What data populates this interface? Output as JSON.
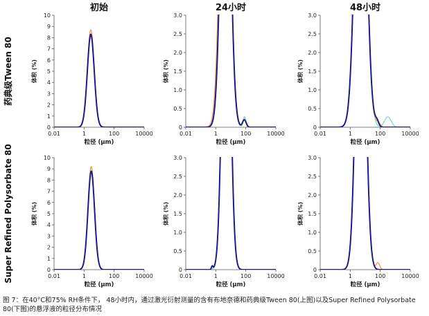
{
  "columns": [
    "初始",
    "24小时",
    "48小时"
  ],
  "rows": [
    "药典级Tween 80",
    "Super Refined Polysorbate 80"
  ],
  "caption": "图 7：在40°C和75% RH条件下， 48小时内，通过激光衍射测量的含有布地奈德和药典级Tween 80(上图)以及Super Refined Polysorbate 80(下图)的悬浮液的粒径分布情况",
  "colors": {
    "main": "#1f1a8a",
    "alt": "#f0a050",
    "alt2": "#7ee0c8"
  },
  "chart_data": [
    {
      "type": "line",
      "row": 0,
      "col": 0,
      "xlabel": "粒径 (μm)",
      "ylabel": "体积 (%)",
      "xscale": "log",
      "xlim": [
        0.01,
        10000
      ],
      "ylim": [
        0,
        10
      ],
      "xticks": [
        "0.01",
        "1",
        "100",
        "10000"
      ],
      "yticks": [
        "0",
        "1",
        "2",
        "3",
        "4",
        "5",
        "6",
        "7",
        "8",
        "9",
        "10"
      ],
      "series": [
        {
          "color": "alt",
          "peaks": [
            {
              "center": 2.8,
              "sigma": 0.23,
              "height": 8.7
            }
          ],
          "xmin": 0.01,
          "xmax": 10000
        },
        {
          "color": "main",
          "peaks": [
            {
              "center": 2.8,
              "sigma": 0.23,
              "height": 8.3
            }
          ],
          "xmin": 0.01,
          "xmax": 10000
        }
      ]
    },
    {
      "type": "line",
      "row": 0,
      "col": 1,
      "xlabel": "粒径 (μm)",
      "ylabel": "体积 (%)",
      "xscale": "log",
      "xlim": [
        0.01,
        10000
      ],
      "ylim": [
        0,
        3.0
      ],
      "xticks": [
        "0.01",
        "1",
        "100",
        "10000"
      ],
      "yticks": [
        "0",
        "0.5",
        "1.0",
        "1.5",
        "2.0",
        "2.5",
        "3.0"
      ],
      "series": [
        {
          "color": "alt2",
          "peaks": [
            {
              "center": 4.5,
              "sigma": 0.3,
              "height": 10
            },
            {
              "center": 82,
              "sigma": 0.09,
              "height": 0.28
            }
          ],
          "xmin": 0.01,
          "xmax": 10000
        },
        {
          "color": "alt",
          "peaks": [
            {
              "center": 4.2,
              "sigma": 0.32,
              "height": 10
            },
            {
              "center": 78,
              "sigma": 0.1,
              "height": 0.22
            }
          ],
          "xmin": 0.01,
          "xmax": 10000
        },
        {
          "color": "main",
          "peaks": [
            {
              "center": 4.5,
              "sigma": 0.3,
              "height": 10
            },
            {
              "center": 80,
              "sigma": 0.12,
              "height": 0.2
            }
          ],
          "xmin": 0.01,
          "xmax": 10000
        }
      ]
    },
    {
      "type": "line",
      "row": 0,
      "col": 2,
      "xlabel": "粒径 (μm)",
      "ylabel": "体积 (%)",
      "xscale": "log",
      "xlim": [
        0.01,
        10000
      ],
      "ylim": [
        0,
        3.0
      ],
      "xticks": [
        "0.01",
        "1",
        "100",
        "10000"
      ],
      "yticks": [
        "0",
        "0.5",
        "1.0",
        "1.5",
        "2.0",
        "2.5",
        "3.0"
      ],
      "series": [
        {
          "color": "alt2",
          "peaks": [
            {
              "center": 5,
              "sigma": 0.35,
              "height": 10
            },
            {
              "center": 320,
              "sigma": 0.22,
              "height": 0.28
            }
          ],
          "xmin": 0.01,
          "xmax": 10000
        },
        {
          "color": "alt",
          "peaks": [
            {
              "center": 5,
              "sigma": 0.35,
              "height": 10
            },
            {
              "center": 75,
              "sigma": 0.12,
              "height": 0.12
            }
          ],
          "xmin": 0.01,
          "xmax": 10000
        },
        {
          "color": "main",
          "peaks": [
            {
              "center": 5,
              "sigma": 0.35,
              "height": 10
            },
            {
              "center": 60,
              "sigma": 0.12,
              "height": 0.15
            }
          ],
          "xmin": 0.01,
          "xmax": 10000
        }
      ]
    },
    {
      "type": "line",
      "row": 1,
      "col": 0,
      "xlabel": "粒径 (μm)",
      "ylabel": "体积 (%)",
      "xscale": "log",
      "xlim": [
        0.01,
        10000
      ],
      "ylim": [
        0,
        10
      ],
      "xticks": [
        "0.01",
        "1",
        "100",
        "10000"
      ],
      "yticks": [
        "0",
        "1",
        "2",
        "3",
        "4",
        "5",
        "6",
        "7",
        "8",
        "9",
        "10"
      ],
      "series": [
        {
          "color": "alt",
          "peaks": [
            {
              "center": 3.0,
              "sigma": 0.22,
              "height": 9.2
            }
          ],
          "xmin": 0.01,
          "xmax": 10000
        },
        {
          "color": "main",
          "peaks": [
            {
              "center": 3.0,
              "sigma": 0.22,
              "height": 8.8
            }
          ],
          "xmin": 0.01,
          "xmax": 10000
        }
      ]
    },
    {
      "type": "line",
      "row": 1,
      "col": 1,
      "xlabel": "粒径 (μm)",
      "ylabel": "体积 (%)",
      "xscale": "log",
      "xlim": [
        0.01,
        10000
      ],
      "ylim": [
        0,
        3.0
      ],
      "xticks": [
        "0.01",
        "1",
        "100",
        "10000"
      ],
      "yticks": [
        "0",
        "0.5",
        "1.0",
        "1.5",
        "2.0",
        "2.5",
        "3.0"
      ],
      "series": [
        {
          "color": "alt2",
          "peaks": [
            {
              "center": 5,
              "sigma": 0.26,
              "height": 10
            }
          ],
          "xmin": 0.01,
          "xmax": 10000
        },
        {
          "color": "main",
          "peaks": [
            {
              "center": 5,
              "sigma": 0.26,
              "height": 10
            },
            {
              "center": 0.58,
              "sigma": 0.05,
              "height": 0.09
            }
          ],
          "xmin": 0.01,
          "xmax": 10000
        }
      ]
    },
    {
      "type": "line",
      "row": 1,
      "col": 2,
      "xlabel": "粒径 (μm)",
      "ylabel": "体积 (%)",
      "xscale": "log",
      "xlim": [
        0.01,
        10000
      ],
      "ylim": [
        0,
        3.0
      ],
      "xticks": [
        "0.01",
        "1",
        "100",
        "10000"
      ],
      "yticks": [
        "0",
        "0.5",
        "1.0",
        "1.5",
        "2.0",
        "2.5",
        "3.0"
      ],
      "series": [
        {
          "color": "alt",
          "peaks": [
            {
              "center": 5,
              "sigma": 0.3,
              "height": 10
            },
            {
              "center": 70,
              "sigma": 0.12,
              "height": 0.18
            }
          ],
          "xmin": 0.01,
          "xmax": 10000
        },
        {
          "color": "main",
          "peaks": [
            {
              "center": 5,
              "sigma": 0.3,
              "height": 10
            }
          ],
          "xmin": 0.01,
          "xmax": 10000
        }
      ]
    }
  ]
}
